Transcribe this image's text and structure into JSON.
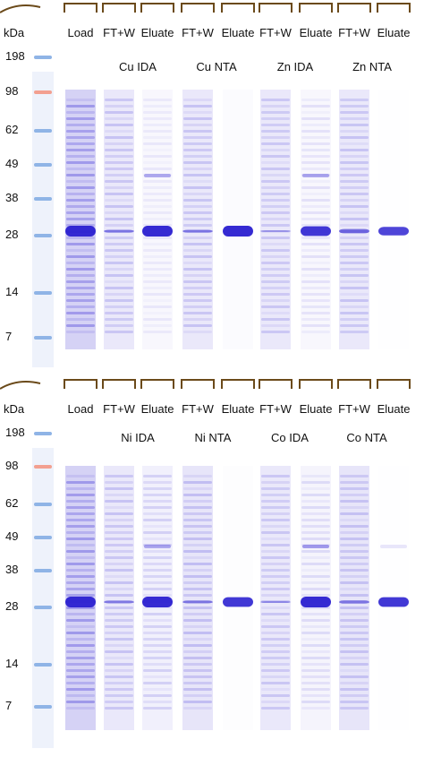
{
  "colors": {
    "stain_heavy": "#2a1fd0",
    "stain_medium": "#6a5fe0",
    "stain_light": "#b9b4ee",
    "marker_blue": "#8fb4e6",
    "marker_pink": "#f3a090",
    "well_edge": "#6b4a1a"
  },
  "unit_label": "kDa",
  "marker_values": [
    "198",
    "98",
    "62",
    "49",
    "38",
    "28",
    "14",
    "7"
  ],
  "lane_labels": [
    "Load",
    "FT+W",
    "Eluate",
    "FT+W",
    "Eluate",
    "FT+W",
    "Eluate",
    "FT+W",
    "Eluate"
  ],
  "panels": [
    {
      "id": "top",
      "groups": [
        "Cu IDA",
        "Cu NTA",
        "Zn IDA",
        "Zn NTA"
      ]
    },
    {
      "id": "bottom",
      "groups": [
        "Ni IDA",
        "Ni NTA",
        "Co IDA",
        "Co NTA"
      ]
    }
  ]
}
